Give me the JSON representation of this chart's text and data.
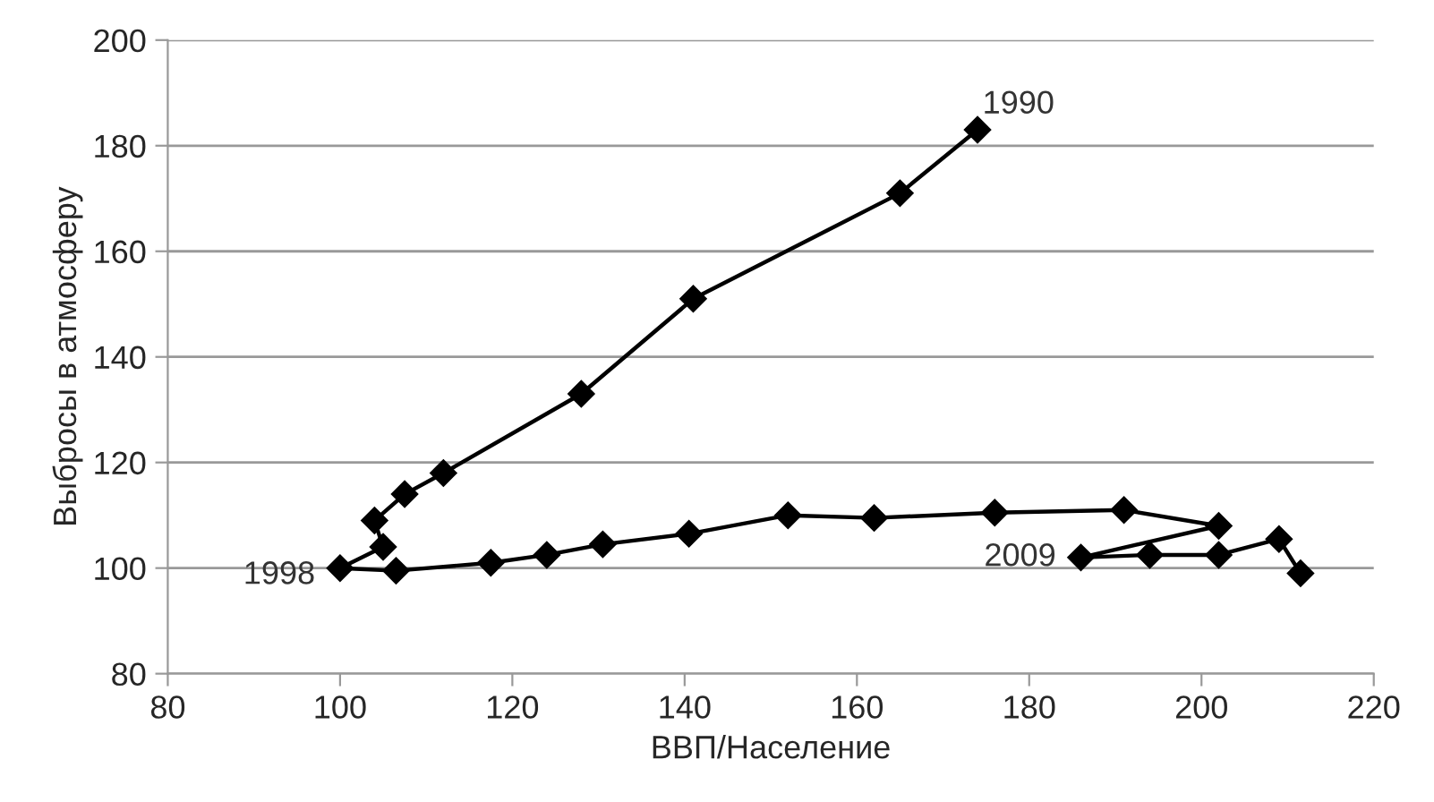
{
  "chart_data": {
    "type": "line",
    "xlabel": "ВВП/Население",
    "ylabel": "Выбросы в атмосферу",
    "series": [
      {
        "color": "#000000",
        "x": [
          174,
          165,
          141,
          128,
          112,
          107.5,
          104,
          105,
          100,
          106.5,
          117.5,
          124,
          130.5,
          140.5,
          152,
          162,
          176,
          191,
          202,
          186,
          194,
          202,
          209,
          211.5
        ],
        "values": [
          183,
          171,
          151,
          133,
          118,
          114,
          109,
          104,
          100,
          99.5,
          101,
          102.5,
          104.5,
          106.5,
          110,
          109.5,
          110.5,
          111,
          108,
          102,
          102.5,
          102.5,
          105.5,
          99
        ]
      }
    ],
    "xlim": [
      80,
      220
    ],
    "xticks": [
      80,
      100,
      120,
      140,
      160,
      180,
      200,
      220
    ],
    "ylim": [
      80,
      200
    ],
    "yticks": [
      80,
      100,
      120,
      140,
      160,
      180,
      200
    ],
    "grid": "y",
    "marker": "diamond",
    "line_style": "solid",
    "annotations": [
      {
        "text": "1990",
        "x": 174,
        "y": 183
      },
      {
        "text": "1998",
        "x": 100,
        "y": 100
      },
      {
        "text": "2009",
        "x": 186,
        "y": 102
      }
    ]
  }
}
